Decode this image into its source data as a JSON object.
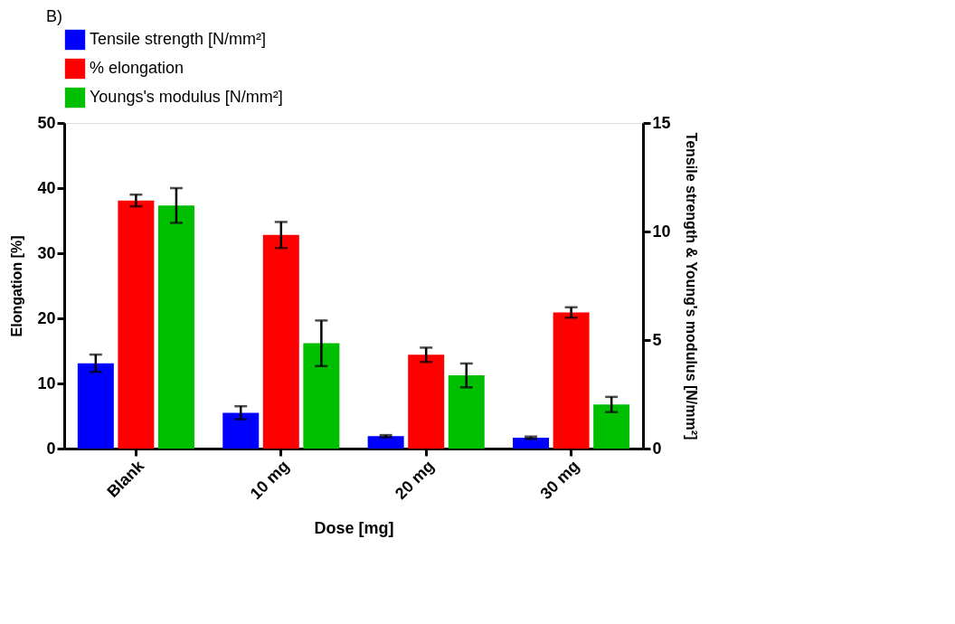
{
  "chart_data": {
    "type": "bar",
    "title": "B)",
    "xlabel": "Dose [mg]",
    "ylabel": "Elongation [%]",
    "y2label": "Tensile strength & Young's modulus [N/mm²]",
    "categories": [
      "Blank",
      "10 mg",
      "20 mg",
      "30 mg"
    ],
    "series": [
      {
        "name": "Tensile strength [N/mm²]",
        "color": "#0000ff",
        "axis": "y2",
        "values": [
          3.93,
          1.65,
          0.57,
          0.5
        ],
        "errors": [
          0.4,
          0.3,
          0.05,
          0.05
        ]
      },
      {
        "name": "% elongation",
        "color": "#ff0000",
        "axis": "y",
        "values": [
          38.1,
          32.8,
          14.4,
          20.9
        ],
        "errors": [
          0.9,
          2.0,
          1.1,
          0.8
        ]
      },
      {
        "name": "Youngs's modulus [N/mm²]",
        "color": "#00bf00",
        "axis": "y2",
        "values": [
          11.2,
          4.85,
          3.37,
          2.03
        ],
        "errors": [
          0.8,
          1.05,
          0.55,
          0.35
        ]
      }
    ],
    "ylim": [
      0,
      50
    ],
    "yticks": [
      0,
      10,
      20,
      30,
      40,
      50
    ],
    "y2lim": [
      0,
      15
    ],
    "y2ticks": [
      0,
      5,
      10,
      15
    ],
    "grid": false,
    "legend": "top"
  }
}
